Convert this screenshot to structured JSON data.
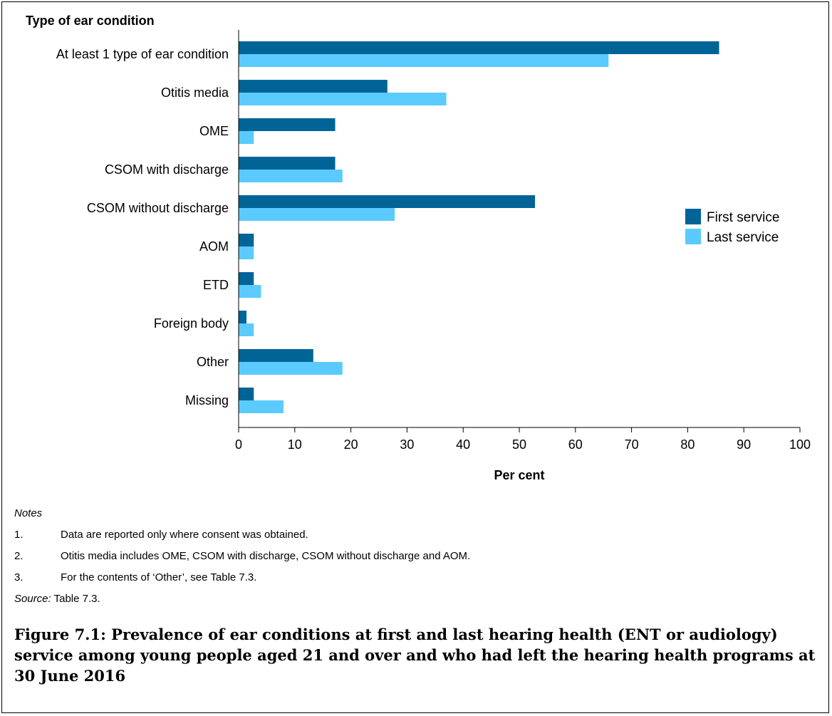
{
  "chart_data": {
    "type": "bar",
    "orientation": "horizontal",
    "y_axis_title": "Type of ear condition",
    "xlabel": "Per cent",
    "xlim": [
      0,
      100
    ],
    "xticks": [
      0,
      10,
      20,
      30,
      40,
      50,
      60,
      70,
      80,
      90,
      100
    ],
    "categories": [
      "At least 1 type of ear condition",
      "Otitis media",
      "OME",
      "CSOM with discharge",
      "CSOM without discharge",
      "AOM",
      "ETD",
      "Foreign body",
      "Other",
      "Missing"
    ],
    "series": [
      {
        "name": "First service",
        "color": "#006496",
        "values": [
          85.6,
          26.5,
          17.2,
          17.2,
          52.8,
          2.7,
          2.7,
          1.4,
          13.3,
          2.7
        ]
      },
      {
        "name": "Last service",
        "color": "#5BCBFF",
        "values": [
          65.9,
          37.0,
          2.7,
          18.5,
          27.8,
          2.7,
          4.0,
          2.7,
          18.5,
          8.0
        ]
      }
    ],
    "legend_position": "right",
    "grid": false
  },
  "notes": {
    "heading": "Notes",
    "items": [
      {
        "num": "1.",
        "text": "Data are reported only where consent was obtained."
      },
      {
        "num": "2.",
        "text": "Otitis media includes OME, CSOM with discharge, CSOM without discharge and AOM."
      },
      {
        "num": "3.",
        "text": "For the contents of ‘Other’, see Table 7.3."
      }
    ],
    "source_label": "Source:",
    "source_text": " Table 7.3."
  },
  "caption": "Figure 7.1: Prevalence of ear conditions at first and last hearing health (ENT or audiology) service among young people aged 21 and over and who had left the hearing health programs at 30 June 2016"
}
